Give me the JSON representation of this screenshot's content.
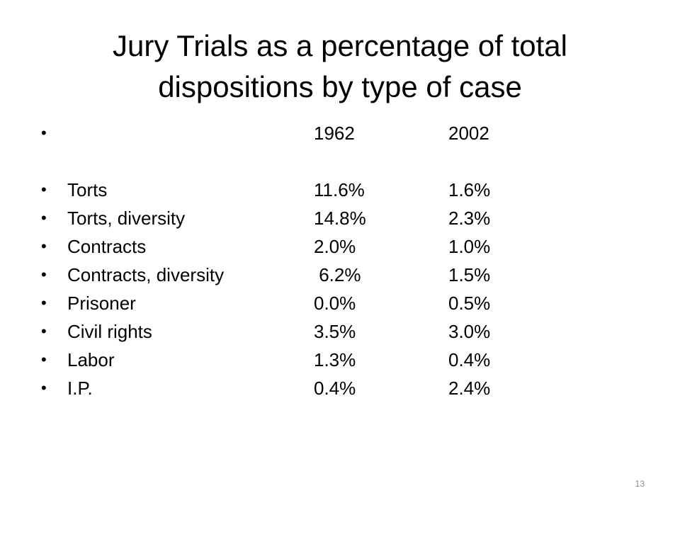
{
  "slide": {
    "title": "Jury Trials as a percentage of total\ndispositions by type of case",
    "header": {
      "label": "",
      "year1": "1962",
      "year2": "2002"
    },
    "rows": [
      {
        "label": "Torts",
        "v1962": "11.6%",
        "v2002": "1.6%"
      },
      {
        "label": "Torts, diversity",
        "v1962": "14.8%",
        "v2002": "2.3%"
      },
      {
        "label": "Contracts",
        "v1962": "2.0%",
        "v2002": "1.0%"
      },
      {
        "label": "Contracts, diversity",
        "v1962": " 6.2%",
        "v2002": "1.5%"
      },
      {
        "label": "Prisoner",
        "v1962": "0.0%",
        "v2002": "0.5%"
      },
      {
        "label": "Civil rights",
        "v1962": "3.5%",
        "v2002": "3.0%"
      },
      {
        "label": "Labor",
        "v1962": "1.3%",
        "v2002": "0.4%"
      },
      {
        "label": "I.P.",
        "v1962": "0.4%",
        "v2002": "2.4%"
      }
    ],
    "bullet_char": "•",
    "slide_number": "13"
  }
}
